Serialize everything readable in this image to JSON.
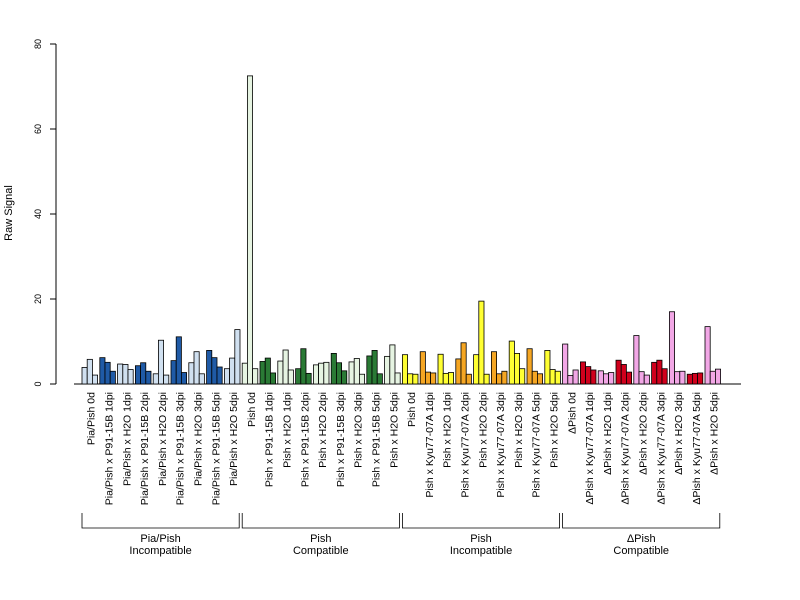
{
  "chart_data": {
    "type": "bar",
    "title": "",
    "ylabel": "Raw Signal",
    "xlabel": "",
    "ylim": [
      0,
      80
    ],
    "yticks": [
      0,
      20,
      40,
      60,
      80
    ],
    "grid": false,
    "groups": [
      {
        "label_line1": "Pia/Pish",
        "label_line2": "Incompatible",
        "categories": [
          {
            "label": "Pia/Pish 0d",
            "values": [
              3.9,
              5.8,
              2.1
            ],
            "color": "#d0e0f0"
          },
          {
            "label": "Pia/Pish x P91-15B 1dpi",
            "values": [
              6.2,
              5.1,
              3.0
            ],
            "color": "#1f5aa6"
          },
          {
            "label": "Pia/Pish x H2O 1dpi",
            "values": [
              4.7,
              4.6,
              3.4
            ],
            "color": "#d0e0f0"
          },
          {
            "label": "Pia/Pish x P91-15B 2dpi",
            "values": [
              4.3,
              5.0,
              3.0
            ],
            "color": "#1f5aa6"
          },
          {
            "label": "Pia/Pish x H2O 2dpi",
            "values": [
              2.4,
              10.3,
              2.1
            ],
            "color": "#d0e0f0"
          },
          {
            "label": "Pia/Pish x P91-15B 3dpi",
            "values": [
              5.5,
              11.1,
              2.7
            ],
            "color": "#1f5aa6"
          },
          {
            "label": "Pia/Pish x H2O 3dpi",
            "values": [
              5.0,
              7.6,
              2.4
            ],
            "color": "#d0e0f0"
          },
          {
            "label": "Pia/Pish x P91-15B 5dpi",
            "values": [
              7.9,
              6.2,
              4.0
            ],
            "color": "#1f5aa6"
          },
          {
            "label": "Pia/Pish x H2O 5dpi",
            "values": [
              3.6,
              6.1,
              12.8
            ],
            "color": "#d0e0f0"
          }
        ]
      },
      {
        "label_line1": "Pish",
        "label_line2": "Compatible",
        "categories": [
          {
            "label": "Pish 0d",
            "values": [
              4.9,
              72.5,
              3.6
            ],
            "color": "#e6f4e2"
          },
          {
            "label": "Pish x P91-15B 1dpi",
            "values": [
              5.3,
              6.1,
              2.6
            ],
            "color": "#2a7a35"
          },
          {
            "label": "Pish x H2O 1dpi",
            "values": [
              5.4,
              8.0,
              3.3
            ],
            "color": "#e6f4e2"
          },
          {
            "label": "Pish x P91-15B 2dpi",
            "values": [
              3.6,
              8.3,
              2.5
            ],
            "color": "#2a7a35"
          },
          {
            "label": "Pish x H2O 2dpi",
            "values": [
              4.5,
              4.9,
              5.1
            ],
            "color": "#e6f4e2"
          },
          {
            "label": "Pish x P91-15B 3dpi",
            "values": [
              7.2,
              5.0,
              3.1
            ],
            "color": "#2a7a35"
          },
          {
            "label": "Pish x H2O 3dpi",
            "values": [
              5.2,
              6.0,
              2.3
            ],
            "color": "#e6f4e2"
          },
          {
            "label": "Pish x P91-15B 5dpi",
            "values": [
              6.6,
              7.9,
              2.4
            ],
            "color": "#2a7a35"
          },
          {
            "label": "Pish x H2O 5dpi",
            "values": [
              6.5,
              9.2,
              2.6
            ],
            "color": "#e6f4e2"
          }
        ]
      },
      {
        "label_line1": "Pish",
        "label_line2": "Incompatible",
        "categories": [
          {
            "label": "Pish 0d",
            "values": [
              6.9,
              2.4,
              2.3
            ],
            "color": "#ffff33"
          },
          {
            "label": "Pish x Kyu77-07A 1dpi",
            "values": [
              7.6,
              2.8,
              2.6
            ],
            "color": "#f5a623"
          },
          {
            "label": "Pish x H2O 1dpi",
            "values": [
              7.0,
              2.5,
              2.7
            ],
            "color": "#ffff33"
          },
          {
            "label": "Pish x Kyu77-07A 2dpi",
            "values": [
              5.9,
              9.7,
              2.3
            ],
            "color": "#f5a623"
          },
          {
            "label": "Pish x H2O 2dpi",
            "values": [
              6.9,
              19.5,
              2.3
            ],
            "color": "#ffff33"
          },
          {
            "label": "Pish x Kyu77-07A 3dpi",
            "values": [
              7.6,
              2.4,
              3.0
            ],
            "color": "#f5a623"
          },
          {
            "label": "Pish x H2O 3dpi",
            "values": [
              10.1,
              7.2,
              3.6
            ],
            "color": "#ffff33"
          },
          {
            "label": "Pish x Kyu77-07A 5dpi",
            "values": [
              8.3,
              3.0,
              2.4
            ],
            "color": "#f5a623"
          },
          {
            "label": "Pish x H2O 5dpi",
            "values": [
              7.9,
              3.4,
              3.0
            ],
            "color": "#ffff33"
          }
        ]
      },
      {
        "label_line1": "ΔPish",
        "label_line2": "Compatible",
        "categories": [
          {
            "label": "ΔPish 0d",
            "values": [
              9.4,
              2.0,
              3.3
            ],
            "color": "#f2a7e6"
          },
          {
            "label": "ΔPish x Kyu77-07A 1dpi",
            "values": [
              5.2,
              4.1,
              3.3
            ],
            "color": "#d0001c"
          },
          {
            "label": "ΔPish x H2O 1dpi",
            "values": [
              3.1,
              2.4,
              2.7
            ],
            "color": "#f2a7e6"
          },
          {
            "label": "ΔPish x Kyu77-07A 2dpi",
            "values": [
              5.6,
              4.6,
              2.8
            ],
            "color": "#d0001c"
          },
          {
            "label": "ΔPish x H2O 2dpi",
            "values": [
              11.4,
              2.9,
              2.1
            ],
            "color": "#f2a7e6"
          },
          {
            "label": "ΔPish x Kyu77-07A 3dpi",
            "values": [
              5.1,
              5.6,
              3.6
            ],
            "color": "#d0001c"
          },
          {
            "label": "ΔPish x H2O 3dpi",
            "values": [
              17.0,
              2.9,
              3.0
            ],
            "color": "#f2a7e6"
          },
          {
            "label": "ΔPish x Kyu77-07A 5dpi",
            "values": [
              2.3,
              2.5,
              2.6
            ],
            "color": "#d0001c"
          },
          {
            "label": "ΔPish x H2O 5dpi",
            "values": [
              13.5,
              3.0,
              3.5
            ],
            "color": "#f2a7e6"
          }
        ]
      }
    ]
  }
}
